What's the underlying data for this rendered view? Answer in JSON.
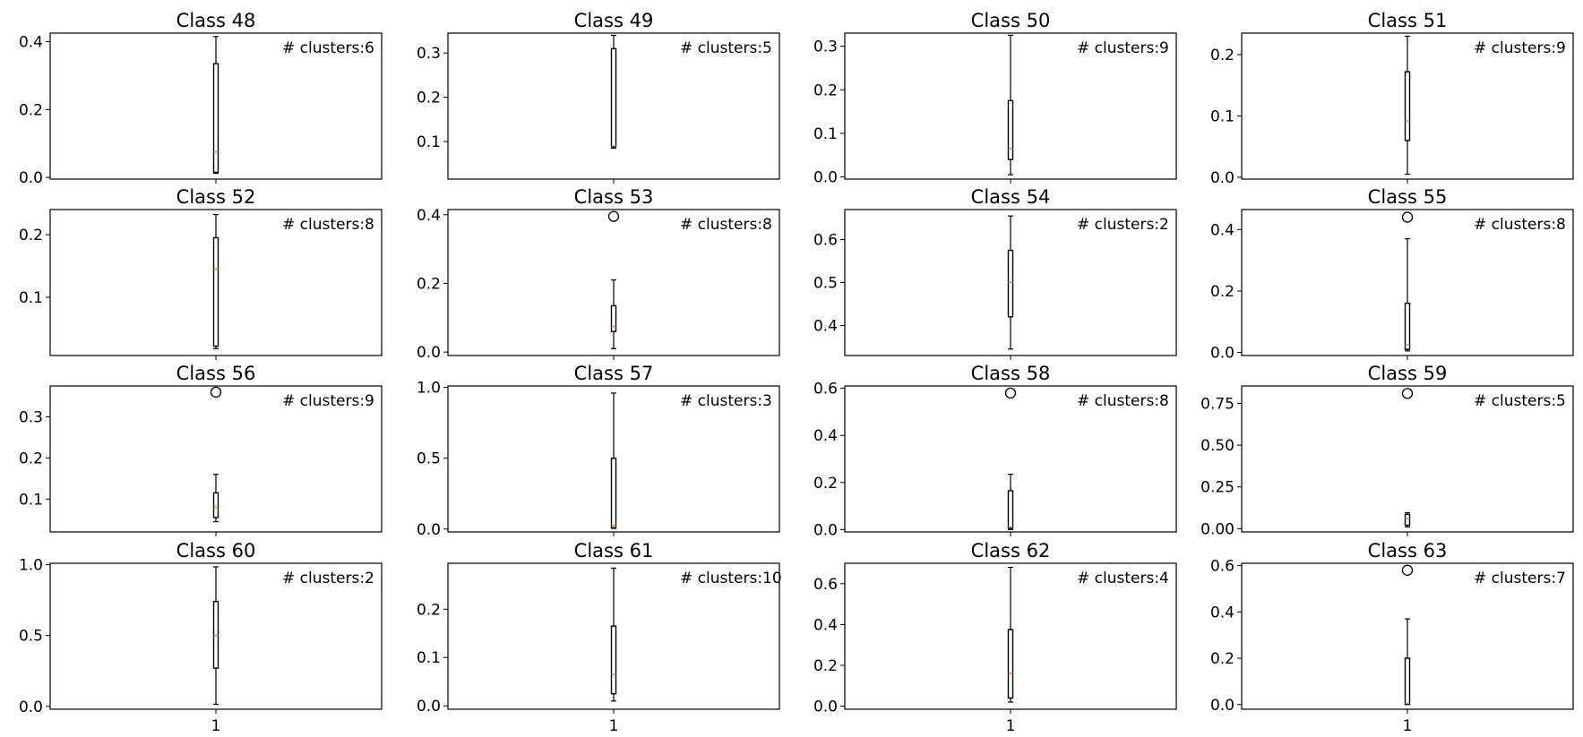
{
  "colors": {
    "median": "#ff7f0e",
    "box": "#000000",
    "frame": "#000000",
    "background": "#ffffff"
  },
  "chart_data": [
    {
      "type": "box",
      "title": "Class 48",
      "categories": [
        "1"
      ],
      "annotation": "# clusters:6",
      "ylim": [
        -0.005,
        0.425
      ],
      "yticks": [
        0.0,
        0.2,
        0.4
      ],
      "ytick_labels": [
        "0.0",
        "0.2",
        "0.4"
      ],
      "whisker_low": 0.012,
      "q1": 0.015,
      "median": 0.075,
      "q3": 0.335,
      "whisker_high": 0.415,
      "outliers": []
    },
    {
      "type": "box",
      "title": "Class 49",
      "categories": [
        "1"
      ],
      "annotation": "# clusters:5",
      "ylim": [
        0.015,
        0.345
      ],
      "yticks": [
        0.1,
        0.2,
        0.3
      ],
      "ytick_labels": [
        "0.1",
        "0.2",
        "0.3"
      ],
      "whisker_low": 0.085,
      "q1": 0.088,
      "median": 0.09,
      "q3": 0.31,
      "whisker_high": 0.34,
      "outliers": []
    },
    {
      "type": "box",
      "title": "Class 50",
      "categories": [
        "1"
      ],
      "annotation": "# clusters:9",
      "ylim": [
        -0.005,
        0.33
      ],
      "yticks": [
        0.0,
        0.1,
        0.2,
        0.3
      ],
      "ytick_labels": [
        "0.0",
        "0.1",
        "0.2",
        "0.3"
      ],
      "whisker_low": 0.005,
      "q1": 0.04,
      "median": 0.065,
      "q3": 0.175,
      "whisker_high": 0.325,
      "outliers": []
    },
    {
      "type": "box",
      "title": "Class 51",
      "categories": [
        "1"
      ],
      "annotation": "# clusters:9",
      "ylim": [
        -0.003,
        0.235
      ],
      "yticks": [
        0.0,
        0.1,
        0.2
      ],
      "ytick_labels": [
        "0.0",
        "0.1",
        "0.2"
      ],
      "whisker_low": 0.005,
      "q1": 0.06,
      "median": 0.092,
      "q3": 0.172,
      "whisker_high": 0.23,
      "outliers": []
    },
    {
      "type": "box",
      "title": "Class 52",
      "categories": [
        "1"
      ],
      "annotation": "# clusters:8",
      "ylim": [
        0.007,
        0.24
      ],
      "yticks": [
        0.1,
        0.2
      ],
      "ytick_labels": [
        "0.1",
        "0.2"
      ],
      "whisker_low": 0.018,
      "q1": 0.022,
      "median": 0.145,
      "q3": 0.195,
      "whisker_high": 0.232,
      "outliers": []
    },
    {
      "type": "box",
      "title": "Class 53",
      "categories": [
        "1"
      ],
      "annotation": "# clusters:8",
      "ylim": [
        -0.01,
        0.415
      ],
      "yticks": [
        0.0,
        0.2,
        0.4
      ],
      "ytick_labels": [
        "0.0",
        "0.2",
        "0.4"
      ],
      "whisker_low": 0.01,
      "q1": 0.06,
      "median": 0.075,
      "q3": 0.135,
      "whisker_high": 0.21,
      "outliers": [
        0.395
      ]
    },
    {
      "type": "box",
      "title": "Class 54",
      "categories": [
        "1"
      ],
      "annotation": "# clusters:2",
      "ylim": [
        0.33,
        0.67
      ],
      "yticks": [
        0.4,
        0.5,
        0.6
      ],
      "ytick_labels": [
        "0.4",
        "0.5",
        "0.6"
      ],
      "whisker_low": 0.345,
      "q1": 0.42,
      "median": 0.5,
      "q3": 0.575,
      "whisker_high": 0.655,
      "outliers": []
    },
    {
      "type": "box",
      "title": "Class 55",
      "categories": [
        "1"
      ],
      "annotation": "# clusters:8",
      "ylim": [
        -0.01,
        0.465
      ],
      "yticks": [
        0.0,
        0.2,
        0.4
      ],
      "ytick_labels": [
        "0.0",
        "0.2",
        "0.4"
      ],
      "whisker_low": 0.005,
      "q1": 0.01,
      "median": 0.025,
      "q3": 0.16,
      "whisker_high": 0.37,
      "outliers": [
        0.44
      ]
    },
    {
      "type": "box",
      "title": "Class 56",
      "categories": [
        "1"
      ],
      "annotation": "# clusters:9",
      "ylim": [
        0.02,
        0.375
      ],
      "yticks": [
        0.1,
        0.2,
        0.3
      ],
      "ytick_labels": [
        "0.1",
        "0.2",
        "0.3"
      ],
      "whisker_low": 0.045,
      "q1": 0.055,
      "median": 0.08,
      "q3": 0.115,
      "whisker_high": 0.16,
      "outliers": [
        0.36
      ]
    },
    {
      "type": "box",
      "title": "Class 57",
      "categories": [
        "1"
      ],
      "annotation": "# clusters:3",
      "ylim": [
        -0.02,
        1.01
      ],
      "yticks": [
        0.0,
        0.5,
        1.0
      ],
      "ytick_labels": [
        "0.0",
        "0.5",
        "1.0"
      ],
      "whisker_low": 0.005,
      "q1": 0.01,
      "median": 0.025,
      "q3": 0.5,
      "whisker_high": 0.96,
      "outliers": []
    },
    {
      "type": "box",
      "title": "Class 58",
      "categories": [
        "1"
      ],
      "annotation": "# clusters:8",
      "ylim": [
        -0.01,
        0.61
      ],
      "yticks": [
        0.0,
        0.2,
        0.4,
        0.6
      ],
      "ytick_labels": [
        "0.0",
        "0.2",
        "0.4",
        "0.6"
      ],
      "whisker_low": 0.0,
      "q1": 0.005,
      "median": 0.01,
      "q3": 0.165,
      "whisker_high": 0.235,
      "outliers": [
        0.58
      ]
    },
    {
      "type": "box",
      "title": "Class 59",
      "categories": [
        "1"
      ],
      "annotation": "# clusters:5",
      "ylim": [
        -0.02,
        0.855
      ],
      "yticks": [
        0.0,
        0.25,
        0.5,
        0.75
      ],
      "ytick_labels": [
        "0.00",
        "0.25",
        "0.50",
        "0.75"
      ],
      "whisker_low": 0.01,
      "q1": 0.02,
      "median": 0.06,
      "q3": 0.085,
      "whisker_high": 0.095,
      "outliers": [
        0.81
      ]
    },
    {
      "type": "box",
      "title": "Class 60",
      "categories": [
        "1"
      ],
      "annotation": "# clusters:2",
      "ylim": [
        -0.02,
        1.01
      ],
      "yticks": [
        0.0,
        0.5,
        1.0
      ],
      "ytick_labels": [
        "0.0",
        "0.5",
        "1.0"
      ],
      "whisker_low": 0.015,
      "q1": 0.27,
      "median": 0.5,
      "q3": 0.74,
      "whisker_high": 0.985,
      "outliers": []
    },
    {
      "type": "box",
      "title": "Class 61",
      "categories": [
        "1"
      ],
      "annotation": "# clusters:10",
      "ylim": [
        -0.007,
        0.295
      ],
      "yticks": [
        0.0,
        0.1,
        0.2
      ],
      "ytick_labels": [
        "0.0",
        "0.1",
        "0.2"
      ],
      "whisker_low": 0.01,
      "q1": 0.025,
      "median": 0.065,
      "q3": 0.165,
      "whisker_high": 0.285,
      "outliers": []
    },
    {
      "type": "box",
      "title": "Class 62",
      "categories": [
        "1"
      ],
      "annotation": "# clusters:4",
      "ylim": [
        -0.015,
        0.7
      ],
      "yticks": [
        0.0,
        0.2,
        0.4,
        0.6
      ],
      "ytick_labels": [
        "0.0",
        "0.2",
        "0.4",
        "0.6"
      ],
      "whisker_low": 0.02,
      "q1": 0.04,
      "median": 0.16,
      "q3": 0.375,
      "whisker_high": 0.68,
      "outliers": []
    },
    {
      "type": "box",
      "title": "Class 63",
      "categories": [
        "1"
      ],
      "annotation": "# clusters:7",
      "ylim": [
        -0.02,
        0.61
      ],
      "yticks": [
        0.0,
        0.2,
        0.4,
        0.6
      ],
      "ytick_labels": [
        "0.0",
        "0.2",
        "0.4",
        "0.6"
      ],
      "whisker_low": 0.0,
      "q1": 0.003,
      "median": 0.005,
      "q3": 0.2,
      "whisker_high": 0.37,
      "outliers": [
        0.58
      ]
    }
  ]
}
